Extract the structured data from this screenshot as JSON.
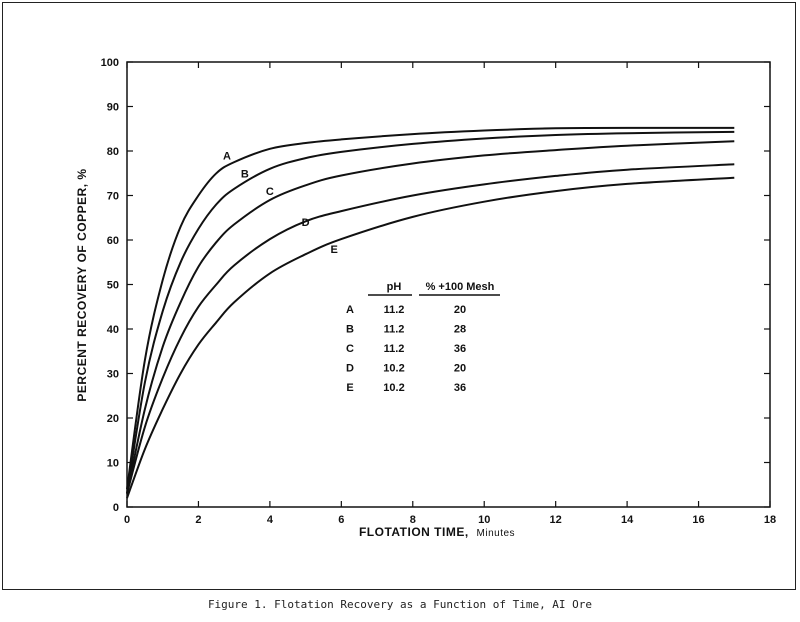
{
  "chart_data": {
    "type": "line",
    "xlabel": "FLOTATION TIME, Minutes",
    "xlabel_main": "FLOTATION TIME,",
    "xlabel_unit": "Minutes",
    "ylabel": "PERCENT RECOVERY OF COPPER, %",
    "xlim": [
      0,
      18
    ],
    "ylim": [
      0,
      100
    ],
    "xticks": [
      0,
      2,
      4,
      6,
      8,
      10,
      12,
      14,
      16,
      18
    ],
    "yticks": [
      0,
      10,
      20,
      30,
      40,
      50,
      60,
      70,
      80,
      90,
      100
    ],
    "grid": false,
    "series": [
      {
        "name": "A",
        "label_at": [
          2.8,
          79
        ],
        "x": [
          0,
          0.5,
          1,
          1.5,
          2,
          2.5,
          3,
          4,
          5,
          6,
          8,
          10,
          12,
          14,
          17
        ],
        "y": [
          4,
          33,
          51,
          63,
          70,
          75,
          77.5,
          80.5,
          81.8,
          82.6,
          83.8,
          84.6,
          85.1,
          85.2,
          85.2
        ]
      },
      {
        "name": "B",
        "label_at": [
          3.3,
          75
        ],
        "x": [
          0,
          0.5,
          1,
          1.5,
          2,
          2.5,
          3,
          4,
          5,
          6,
          8,
          10,
          12,
          14,
          17
        ],
        "y": [
          3,
          28,
          44,
          55,
          62.5,
          68,
          71.5,
          76,
          78.4,
          79.8,
          81.6,
          82.8,
          83.6,
          84,
          84.3
        ]
      },
      {
        "name": "C",
        "label_at": [
          4.0,
          71
        ],
        "x": [
          0,
          0.5,
          1,
          1.5,
          2,
          2.5,
          3,
          4,
          5,
          6,
          8,
          10,
          12,
          14,
          17
        ],
        "y": [
          3,
          22,
          36,
          46,
          54,
          59.5,
          63.5,
          69,
          72.3,
          74.5,
          77.2,
          79,
          80.2,
          81.2,
          82.2
        ]
      },
      {
        "name": "D",
        "label_at": [
          5.0,
          64
        ],
        "x": [
          0,
          0.5,
          1,
          1.5,
          2,
          2.5,
          3,
          4,
          5,
          6,
          8,
          10,
          12,
          14,
          17
        ],
        "y": [
          3,
          18,
          29,
          38,
          45,
          50,
          54.3,
          60.2,
          64.2,
          66.5,
          70,
          72.5,
          74.4,
          75.8,
          77
        ]
      },
      {
        "name": "E",
        "label_at": [
          5.8,
          58
        ],
        "x": [
          0,
          0.5,
          1,
          1.5,
          2,
          2.5,
          3,
          4,
          5,
          6,
          8,
          10,
          12,
          14,
          17
        ],
        "y": [
          2,
          13,
          22,
          30,
          36.5,
          41.5,
          46,
          52.5,
          56.8,
          60.2,
          65.2,
          68.6,
          71,
          72.6,
          74
        ]
      }
    ],
    "legend_table": {
      "headers": [
        "pH",
        "% +100 Mesh"
      ],
      "rows": [
        {
          "id": "A",
          "ph": "11.2",
          "mesh": "20"
        },
        {
          "id": "B",
          "ph": "11.2",
          "mesh": "28"
        },
        {
          "id": "C",
          "ph": "11.2",
          "mesh": "36"
        },
        {
          "id": "D",
          "ph": "10.2",
          "mesh": "20"
        },
        {
          "id": "E",
          "ph": "10.2",
          "mesh": "36"
        }
      ]
    }
  },
  "caption": "Figure 1.  Flotation Recovery as a Function of Time, AI Ore"
}
